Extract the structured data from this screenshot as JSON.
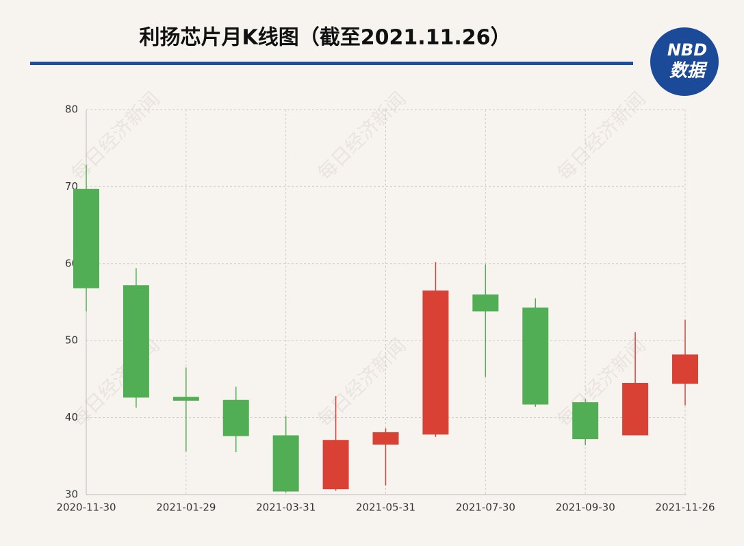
{
  "chart_data": {
    "type": "candlestick",
    "title": "利扬芯片月K线图（截至2021.11.26）",
    "logo": {
      "top": "NBD",
      "bottom": "数据"
    },
    "watermark": "每日经济新闻",
    "categories": [
      "2020-11-30",
      null,
      "2021-01-29",
      null,
      "2021-03-31",
      null,
      "2021-05-31",
      null,
      "2021-07-30",
      null,
      "2021-09-30",
      null,
      "2021-11-26"
    ],
    "open": [
      69.7,
      57.2,
      42.7,
      42.3,
      37.7,
      30.7,
      36.5,
      37.8,
      56.0,
      54.3,
      42.0,
      37.7,
      44.4
    ],
    "close": [
      56.8,
      42.6,
      42.2,
      37.6,
      30.4,
      37.1,
      38.1,
      56.5,
      53.8,
      41.7,
      37.2,
      44.5,
      48.2
    ],
    "high": [
      72.8,
      59.4,
      46.5,
      44.0,
      40.2,
      42.8,
      38.6,
      60.2,
      59.9,
      55.5,
      42.4,
      51.1,
      52.7
    ],
    "low": [
      53.8,
      41.3,
      35.6,
      35.5,
      30.3,
      30.5,
      31.2,
      37.5,
      45.3,
      41.4,
      36.4,
      37.7,
      41.6
    ],
    "up_color": "#d94135",
    "down_color": "#52ae55",
    "ylim": [
      30,
      80
    ],
    "yticks": [
      30,
      40,
      50,
      60,
      70,
      80
    ],
    "grid": true
  }
}
